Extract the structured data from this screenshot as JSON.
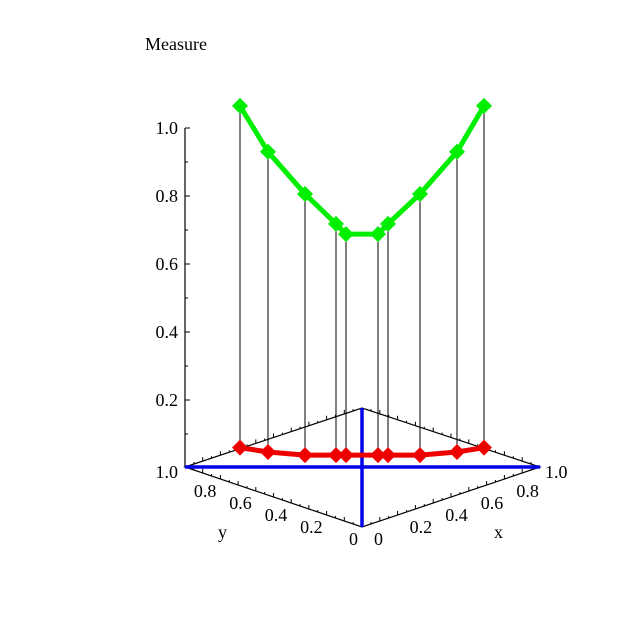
{
  "chart_data": {
    "type": "line",
    "title": "Measure",
    "xlabel": "x",
    "ylabel": "y",
    "zlabel": "",
    "view": "3d",
    "z_ticks": [
      "0.2",
      "0.4",
      "0.6",
      "0.8",
      "1.0"
    ],
    "x_ticks": [
      "0",
      "0.2",
      "0.4",
      "0.6",
      "0.8",
      "1.0"
    ],
    "y_ticks": [
      "0",
      "0.2",
      "0.4",
      "0.6",
      "0.8",
      "1.0"
    ],
    "zlim": [
      0,
      1.0
    ],
    "series": [
      {
        "color": "#00ee00",
        "marker": "diamond",
        "z": [
          1.065,
          0.93,
          0.806,
          0.718,
          0.688,
          0.688,
          0.718,
          0.806,
          0.93,
          1.065
        ]
      },
      {
        "color": "#ee0000",
        "marker": "diamond",
        "z": [
          0.06,
          0.047,
          0.038,
          0.038,
          0.038,
          0.038,
          0.038,
          0.038,
          0.047,
          0.06
        ]
      }
    ],
    "axis_color": "#0000ee",
    "drop_lines": true
  }
}
